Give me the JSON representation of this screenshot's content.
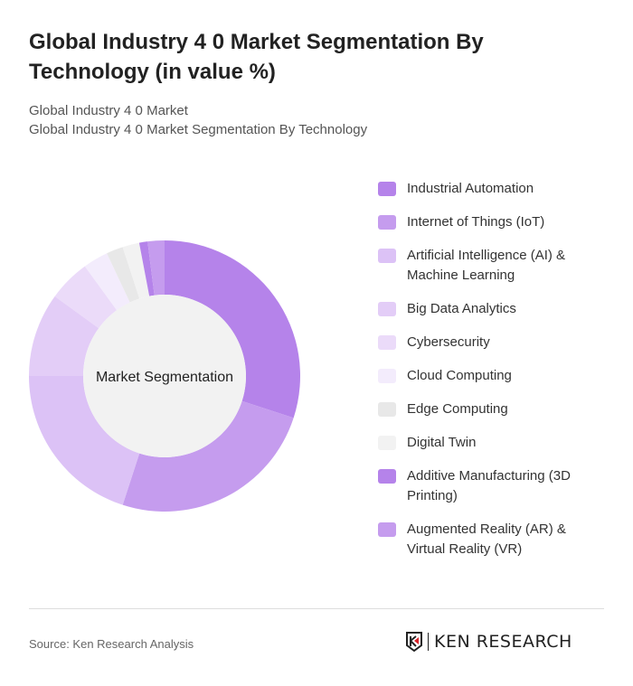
{
  "title": "Global Industry 4 0 Market Segmentation By Technology (in value %)",
  "subtitle1": "Global Industry 4 0 Market",
  "subtitle2": "Global Industry 4 0 Market Segmentation By Technology",
  "source": "Source: Ken Research Analysis",
  "logo_text": "KEN RESEARCH",
  "chart_data": {
    "type": "pie",
    "variant": "donut",
    "center_label": "Market Segmentation",
    "categories": [
      "Industrial Automation",
      "Internet of Things (IoT)",
      "Artificial Intelligence (AI) & Machine Learning",
      "Big Data Analytics",
      "Cybersecurity",
      "Cloud Computing",
      "Edge Computing",
      "Digital Twin",
      "Additive Manufacturing (3D Printing)",
      "Augmented Reality (AR) & Virtual Reality (VR)"
    ],
    "values": [
      30,
      25,
      20,
      10,
      5,
      3,
      2,
      2,
      1,
      2
    ],
    "colors": [
      "#b583ea",
      "#c59cee",
      "#dcc2f6",
      "#e3cdf7",
      "#ebdbf9",
      "#f3ecfc",
      "#e8e8e8",
      "#f2f2f2",
      "#b583ea",
      "#c59cee"
    ],
    "legend_position": "right"
  }
}
